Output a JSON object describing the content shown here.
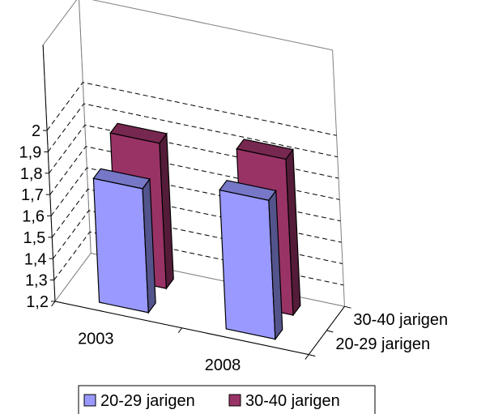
{
  "chart_data": {
    "type": "bar",
    "variant": "3d-clustered-depth",
    "categories": [
      "2003",
      "2008"
    ],
    "series": [
      {
        "name": "20-29 jarigen",
        "values": [
          1.78,
          1.85
        ],
        "color": "#9999FF"
      },
      {
        "name": "30-40 jarigen",
        "values": [
          1.88,
          1.93
        ],
        "color": "#993366"
      }
    ],
    "yticks": [
      "1,2",
      "1,3",
      "1,4",
      "1,5",
      "1,6",
      "1,7",
      "1,8",
      "1,9",
      "2"
    ],
    "ylim": [
      1.2,
      2.0
    ],
    "grid": true,
    "legend": "bottom",
    "title": "",
    "xlabel": "",
    "ylabel": ""
  }
}
